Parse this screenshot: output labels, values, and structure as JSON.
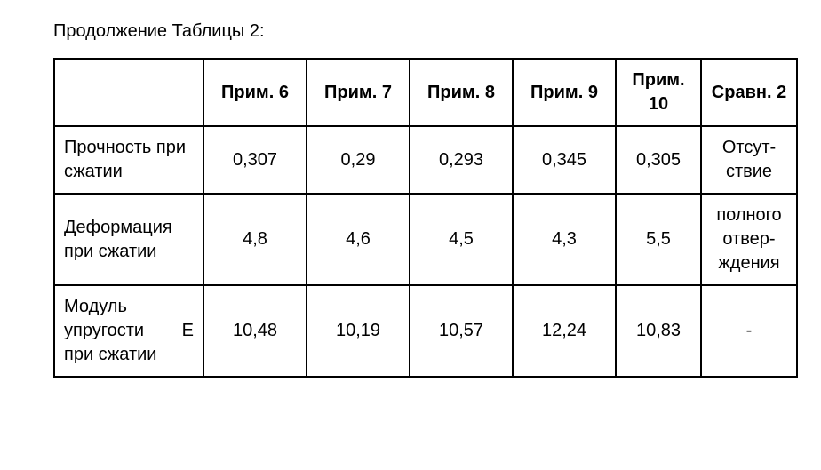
{
  "caption": "Продолжение Таблицы 2:",
  "table": {
    "columns": [
      "",
      "Прим. 6",
      "Прим. 7",
      "Прим. 8",
      "Прим. 9",
      "Прим. 10",
      "Сравн. 2"
    ],
    "rows": [
      {
        "label": "Прочность при сжатии",
        "cells": [
          "0,307",
          "0,29",
          "0,293",
          "0,345",
          "0,305"
        ],
        "cmp": "Отсут- ствие"
      },
      {
        "label": "Деформация при сжатии",
        "cells": [
          "4,8",
          "4,6",
          "4,5",
          "4,3",
          "5,5"
        ],
        "cmp": "полного отвер- ждения"
      },
      {
        "label_parts": [
          "Модуль",
          "упругости",
          "E",
          "при сжатии"
        ],
        "label": "Модуль упругости Е при сжатии",
        "cells": [
          "10,48",
          "10,19",
          "10,57",
          "12,24",
          "10,83"
        ],
        "cmp": "-"
      }
    ],
    "border_color": "#000000",
    "background_color": "#ffffff",
    "font_size": 20,
    "header_font_weight": 700
  }
}
